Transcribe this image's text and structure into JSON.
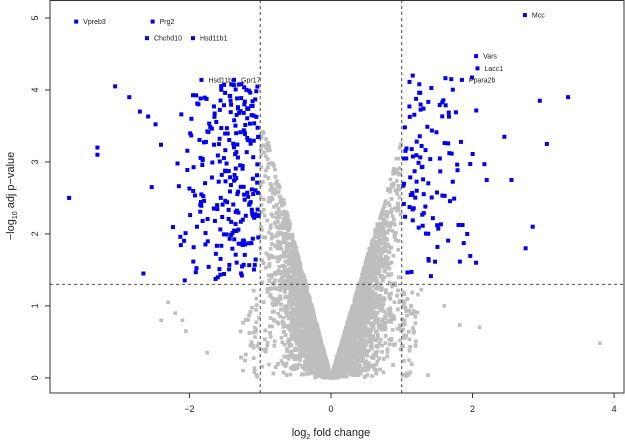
{
  "chart_data": {
    "type": "scatter",
    "title": "",
    "xlabel_main": "log",
    "xlabel_sub": "2",
    "xlabel_rest": " fold change",
    "ylabel_main": "−log",
    "ylabel_sub": "10",
    "ylabel_rest": " adj p−value",
    "xlim": [
      -3.97,
      4.14
    ],
    "ylim": [
      -0.21,
      5.25
    ],
    "xticks": [
      -2,
      0,
      2,
      4
    ],
    "xtick_labels": [
      "−2",
      "0",
      "2",
      "4"
    ],
    "yticks": [
      0,
      1,
      2,
      3,
      4,
      5
    ],
    "ytick_labels": [
      "0",
      "1",
      "2",
      "3",
      "4",
      "5"
    ],
    "thresholds": {
      "log2fc": [
        -1,
        1
      ],
      "neg_log10_padj": 1.3
    },
    "colors": {
      "significant": "#0000ee",
      "not_significant": "#bebebe"
    },
    "labeled_points": [
      {
        "gene": "Vpreb3",
        "x": -3.6,
        "y": 4.95
      },
      {
        "gene": "Prg2",
        "x": -2.52,
        "y": 4.95
      },
      {
        "gene": "Chchd10",
        "x": -2.6,
        "y": 4.72
      },
      {
        "gene": "Hsd11b1",
        "x": -1.95,
        "y": 4.72
      },
      {
        "gene": "Hsd11b1",
        "x": -1.83,
        "y": 4.14
      },
      {
        "gene": "Gpr17",
        "x": -1.37,
        "y": 4.14
      },
      {
        "gene": "Mcc",
        "x": 2.74,
        "y": 5.04
      },
      {
        "gene": "Vars",
        "x": 2.05,
        "y": 4.47
      },
      {
        "gene": "Lacc1",
        "x": 2.07,
        "y": 4.3
      },
      {
        "gene": "Ppara2b",
        "x": 1.85,
        "y": 4.14
      }
    ],
    "series": [
      {
        "name": "significant_down",
        "count": 260,
        "x_range": [
          -3.6,
          -1.0
        ],
        "y_range": [
          1.3,
          4.1
        ]
      },
      {
        "name": "significant_up",
        "count": 110,
        "x_range": [
          1.0,
          3.4
        ],
        "y_range": [
          1.3,
          4.2
        ]
      },
      {
        "name": "not_significant",
        "count": 9000
      }
    ]
  }
}
